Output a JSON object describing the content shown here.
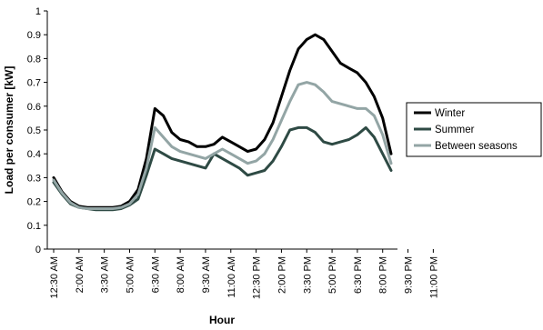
{
  "chart_data": {
    "type": "line",
    "xlabel": "Hour",
    "ylabel": "Load per consumer [kW]",
    "ylim": [
      0,
      1
    ],
    "yticks": [
      0,
      0.1,
      0.2,
      0.3,
      0.4,
      0.5,
      0.6,
      0.7,
      0.8,
      0.9,
      1
    ],
    "ytick_labels": [
      "0",
      "0.1",
      "0.2",
      "0.3",
      "0.4",
      "0.5",
      "0.6",
      "0.7",
      "0.8",
      "0.9",
      "1"
    ],
    "x_tick_labels": [
      "12:30 AM",
      "2:00 AM",
      "3:30 AM",
      "5:00 AM",
      "6:30 AM",
      "8:00 AM",
      "9:30 AM",
      "11:00 AM",
      "12:30 PM",
      "2:00 PM",
      "3:30 PM",
      "5:00 PM",
      "6:30 PM",
      "8:00 PM",
      "9:30 PM",
      "11:00 PM"
    ],
    "x_tick_every": 3,
    "grid": false,
    "legend": "right",
    "series": [
      {
        "name": "Winter",
        "color": "#000000",
        "values": [
          0.3,
          0.24,
          0.2,
          0.18,
          0.175,
          0.175,
          0.175,
          0.175,
          0.18,
          0.2,
          0.25,
          0.38,
          0.59,
          0.56,
          0.49,
          0.46,
          0.45,
          0.43,
          0.43,
          0.44,
          0.47,
          0.45,
          0.43,
          0.41,
          0.42,
          0.46,
          0.53,
          0.64,
          0.75,
          0.84,
          0.88,
          0.9,
          0.88,
          0.83,
          0.78,
          0.76,
          0.74,
          0.7,
          0.64,
          0.55,
          0.4
        ]
      },
      {
        "name": "Summer",
        "color": "#2e4a44",
        "values": [
          0.28,
          0.23,
          0.19,
          0.175,
          0.17,
          0.165,
          0.165,
          0.165,
          0.17,
          0.185,
          0.21,
          0.31,
          0.42,
          0.4,
          0.38,
          0.37,
          0.36,
          0.35,
          0.34,
          0.4,
          0.38,
          0.36,
          0.34,
          0.31,
          0.32,
          0.33,
          0.37,
          0.43,
          0.5,
          0.51,
          0.51,
          0.49,
          0.45,
          0.44,
          0.45,
          0.46,
          0.48,
          0.51,
          0.47,
          0.4,
          0.33
        ]
      },
      {
        "name": "Between seasons",
        "color": "#93a5a5",
        "values": [
          0.29,
          0.235,
          0.195,
          0.175,
          0.17,
          0.17,
          0.17,
          0.17,
          0.175,
          0.19,
          0.23,
          0.34,
          0.51,
          0.47,
          0.43,
          0.41,
          0.4,
          0.39,
          0.38,
          0.4,
          0.42,
          0.4,
          0.38,
          0.36,
          0.37,
          0.4,
          0.46,
          0.54,
          0.62,
          0.69,
          0.7,
          0.69,
          0.66,
          0.62,
          0.61,
          0.6,
          0.59,
          0.59,
          0.56,
          0.48,
          0.36
        ]
      }
    ]
  }
}
